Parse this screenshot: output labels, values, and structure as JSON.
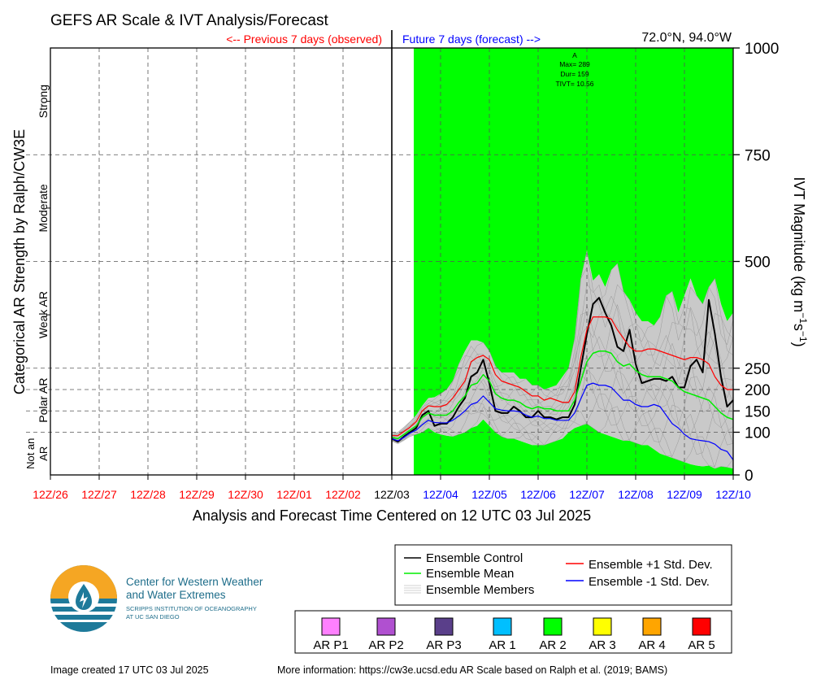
{
  "header": {
    "title": "GEFS AR Scale & IVT Analysis/Forecast",
    "previous_label": "<-- Previous 7 days (observed)",
    "future_label": "Future 7 days (forecast) -->",
    "location": "72.0°N, 94.0°W"
  },
  "chart_data": {
    "type": "line",
    "title": "GEFS AR Scale & IVT Analysis/Forecast",
    "xlabel": "Analysis and Forecast Time Centered on 12 UTC 03 Jul 2025",
    "ylabel_left": "Categorical AR Strength by Ralph/CW3E",
    "ylabel_right": "IVT Magnitude (kg m",
    "ylabel_right_unit_sup1": "−1",
    "ylabel_right_unit_mid": "s",
    "ylabel_right_unit_sup2": "−1",
    "ylabel_right_close": ")",
    "x_range_days": [
      -7,
      7
    ],
    "x_ticks": [
      {
        "label": "12Z/26",
        "day": -7,
        "color": "#ff0000"
      },
      {
        "label": "12Z/27",
        "day": -6,
        "color": "#ff0000"
      },
      {
        "label": "12Z/28",
        "day": -5,
        "color": "#ff0000"
      },
      {
        "label": "12Z/29",
        "day": -4,
        "color": "#ff0000"
      },
      {
        "label": "12Z/30",
        "day": -3,
        "color": "#ff0000"
      },
      {
        "label": "12Z/01",
        "day": -2,
        "color": "#ff0000"
      },
      {
        "label": "12Z/02",
        "day": -1,
        "color": "#ff0000"
      },
      {
        "label": "12Z/03",
        "day": 0,
        "color": "#000000"
      },
      {
        "label": "12Z/04",
        "day": 1,
        "color": "#0000ff"
      },
      {
        "label": "12Z/05",
        "day": 2,
        "color": "#0000ff"
      },
      {
        "label": "12Z/06",
        "day": 3,
        "color": "#0000ff"
      },
      {
        "label": "12Z/07",
        "day": 4,
        "color": "#0000ff"
      },
      {
        "label": "12Z/08",
        "day": 5,
        "color": "#0000ff"
      },
      {
        "label": "12Z/09",
        "day": 6,
        "color": "#0000ff"
      },
      {
        "label": "12Z/10",
        "day": 7,
        "color": "#0000ff"
      }
    ],
    "ylim": [
      0,
      1000
    ],
    "y_ticks": [
      0,
      100,
      150,
      200,
      250,
      500,
      750,
      1000
    ],
    "category_bands": [
      {
        "label": "Strong",
        "low": 750,
        "high": 1000
      },
      {
        "label": "Moderate",
        "low": 500,
        "high": 750
      },
      {
        "label": "Weak AR",
        "low": 250,
        "high": 500
      },
      {
        "label": "Polar AR",
        "low": 100,
        "high": 250
      },
      {
        "label": "Not an AR",
        "line1": "Not an",
        "line2": "AR",
        "low": 0,
        "high": 100
      }
    ],
    "category_lines": [
      100,
      150,
      200,
      250,
      500,
      750
    ],
    "ar_shading": {
      "start_day": 0.45,
      "end_day": 7,
      "color": "#00ff00",
      "category": "AR 2"
    },
    "ar_event": {
      "letter": "A",
      "max": "Max= 289",
      "dur": "Dur= 159",
      "tivt": "TIVT= 10.56"
    },
    "times_days": [
      0,
      0.125,
      0.25,
      0.375,
      0.5,
      0.625,
      0.75,
      0.875,
      1,
      1.125,
      1.25,
      1.375,
      1.5,
      1.625,
      1.75,
      1.875,
      2,
      2.125,
      2.25,
      2.375,
      2.5,
      2.625,
      2.75,
      2.875,
      3,
      3.125,
      3.25,
      3.375,
      3.5,
      3.625,
      3.75,
      3.875,
      4,
      4.125,
      4.25,
      4.375,
      4.5,
      4.625,
      4.75,
      4.875,
      5,
      5.125,
      5.25,
      5.375,
      5.5,
      5.625,
      5.75,
      5.875,
      6,
      6.125,
      6.25,
      6.375,
      6.5,
      6.625,
      6.75,
      6.875,
      7
    ],
    "series": [
      {
        "name": "Ensemble Control",
        "color": "#000000",
        "width": 2,
        "values": [
          85,
          78,
          90,
          100,
          110,
          140,
          150,
          115,
          120,
          120,
          135,
          160,
          180,
          230,
          240,
          270,
          215,
          150,
          145,
          145,
          160,
          150,
          135,
          135,
          150,
          135,
          135,
          130,
          135,
          135,
          165,
          250,
          330,
          400,
          415,
          380,
          350,
          300,
          290,
          340,
          260,
          215,
          220,
          225,
          225,
          220,
          230,
          205,
          205,
          255,
          270,
          240,
          410,
          330,
          230,
          160,
          175
        ]
      },
      {
        "name": "Ensemble Mean",
        "color": "#00ee00",
        "width": 1.5,
        "values": [
          88,
          85,
          95,
          105,
          115,
          135,
          145,
          140,
          140,
          140,
          150,
          170,
          185,
          210,
          215,
          235,
          220,
          190,
          180,
          175,
          175,
          170,
          160,
          155,
          160,
          155,
          155,
          150,
          150,
          150,
          175,
          220,
          265,
          285,
          290,
          290,
          285,
          265,
          255,
          260,
          245,
          235,
          230,
          230,
          230,
          225,
          220,
          205,
          195,
          190,
          185,
          180,
          175,
          160,
          145,
          135,
          130
        ]
      },
      {
        "name": "Ensemble +1 Std. Dev.",
        "color": "#ff0000",
        "width": 1.2,
        "values": [
          92,
          92,
          102,
          112,
          125,
          150,
          162,
          160,
          160,
          165,
          180,
          200,
          220,
          265,
          275,
          280,
          270,
          235,
          220,
          215,
          210,
          205,
          195,
          185,
          185,
          175,
          180,
          175,
          170,
          170,
          195,
          275,
          340,
          370,
          370,
          370,
          365,
          340,
          320,
          300,
          290,
          290,
          295,
          295,
          290,
          285,
          280,
          275,
          270,
          275,
          275,
          270,
          260,
          230,
          210,
          200,
          200
        ]
      },
      {
        "name": "Ensemble -1 Std. Dev.",
        "color": "#0000ff",
        "width": 1.2,
        "values": [
          85,
          80,
          88,
          98,
          105,
          118,
          128,
          123,
          122,
          122,
          128,
          138,
          150,
          165,
          170,
          185,
          170,
          155,
          152,
          150,
          150,
          148,
          140,
          135,
          138,
          132,
          132,
          128,
          128,
          128,
          145,
          178,
          210,
          215,
          210,
          210,
          205,
          190,
          175,
          175,
          165,
          160,
          160,
          165,
          160,
          140,
          120,
          110,
          95,
          85,
          82,
          80,
          78,
          72,
          60,
          55,
          35
        ]
      }
    ],
    "members_band": {
      "name": "Ensemble Members",
      "color": "#bfbfbf",
      "upper": [
        98,
        100,
        112,
        125,
        140,
        162,
        180,
        182,
        190,
        200,
        220,
        260,
        290,
        315,
        315,
        310,
        290,
        255,
        240,
        240,
        240,
        225,
        225,
        210,
        210,
        200,
        205,
        210,
        230,
        250,
        320,
        460,
        525,
        455,
        470,
        440,
        480,
        495,
        430,
        410,
        380,
        360,
        360,
        350,
        370,
        420,
        430,
        380,
        420,
        460,
        420,
        400,
        440,
        460,
        400,
        360,
        380
      ],
      "lower": [
        78,
        72,
        80,
        90,
        95,
        100,
        110,
        100,
        95,
        92,
        90,
        95,
        100,
        110,
        115,
        130,
        115,
        100,
        90,
        85,
        85,
        80,
        75,
        70,
        70,
        70,
        75,
        80,
        85,
        100,
        110,
        115,
        120,
        110,
        100,
        95,
        90,
        85,
        80,
        80,
        75,
        70,
        70,
        60,
        50,
        45,
        40,
        35,
        30,
        25,
        22,
        20,
        22,
        15,
        20,
        18,
        15
      ]
    }
  },
  "legend_lines": {
    "control": "Ensemble Control",
    "mean": "Ensemble Mean",
    "members": "Ensemble Members",
    "plus_std": "Ensemble +1 Std. Dev.",
    "minus_std": "Ensemble -1 Std. Dev."
  },
  "legend_categories": [
    {
      "label": "AR P1",
      "color": "#ff80ff"
    },
    {
      "label": "AR P2",
      "color": "#b050d0"
    },
    {
      "label": "AR P3",
      "color": "#5a3f8a"
    },
    {
      "label": "AR 1",
      "color": "#00bfff"
    },
    {
      "label": "AR 2",
      "color": "#00ff00"
    },
    {
      "label": "AR 3",
      "color": "#ffff00"
    },
    {
      "label": "AR 4",
      "color": "#ffa500"
    },
    {
      "label": "AR 5",
      "color": "#ff0000"
    }
  ],
  "logo": {
    "line1": "Center for Western Weather",
    "line2": "and Water Extremes",
    "line3": "SCRIPPS INSTITUTION OF OCEANOGRAPHY",
    "line4": "AT UC SAN DIEGO"
  },
  "footer": {
    "created": "Image created 17 UTC 03 Jul 2025",
    "info": "More information: https://cw3e.ucsd.edu AR Scale based on Ralph et al. (2019; BAMS)"
  }
}
